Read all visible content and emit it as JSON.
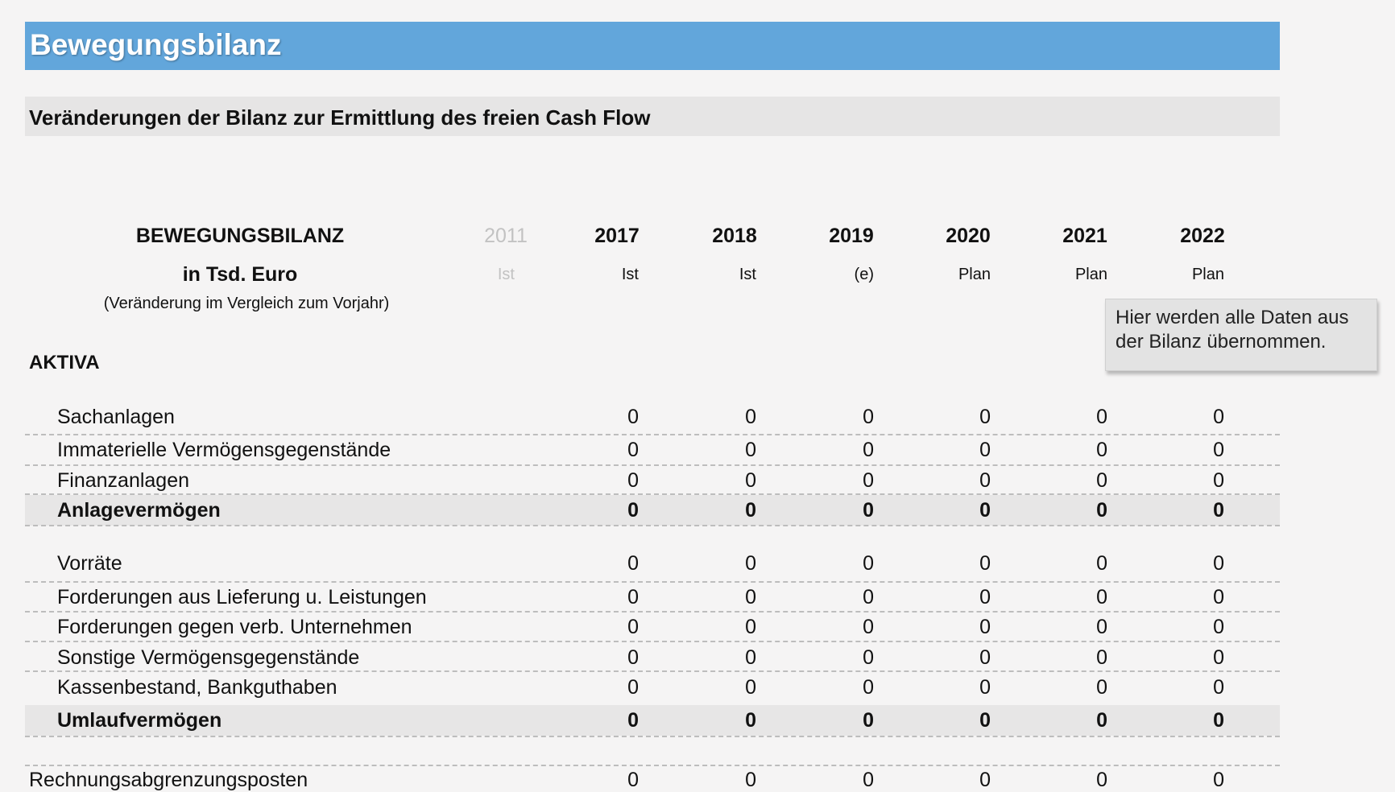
{
  "header": {
    "title": "Bewegungsbilanz",
    "subtitle": "Veränderungen der Bilanz zur Ermittlung des freien Cash Flow"
  },
  "table": {
    "heading": "BEWEGUNGSBILANZ",
    "unit": "in Tsd. Euro",
    "note": "(Veränderung im Vergleich zum Vorjahr)",
    "columns": [
      {
        "year": "2011",
        "kind": "Ist"
      },
      {
        "year": "2017",
        "kind": "Ist"
      },
      {
        "year": "2018",
        "kind": "Ist"
      },
      {
        "year": "2019",
        "kind": "(e)"
      },
      {
        "year": "2020",
        "kind": "Plan"
      },
      {
        "year": "2021",
        "kind": "Plan"
      },
      {
        "year": "2022",
        "kind": "Plan"
      }
    ],
    "section": "AKTIVA",
    "rows": [
      {
        "label": "Sachanlagen",
        "values": [
          0,
          0,
          0,
          0,
          0,
          0
        ]
      },
      {
        "label": "Immaterielle Vermögensgegenstände",
        "values": [
          0,
          0,
          0,
          0,
          0,
          0
        ]
      },
      {
        "label": "Finanzanlagen",
        "values": [
          0,
          0,
          0,
          0,
          0,
          0
        ]
      },
      {
        "label": "Anlagevermögen",
        "values": [
          0,
          0,
          0,
          0,
          0,
          0
        ],
        "bold": true
      },
      {
        "label": "Vorräte",
        "values": [
          0,
          0,
          0,
          0,
          0,
          0
        ]
      },
      {
        "label": "Forderungen aus Lieferung u. Leistungen",
        "values": [
          0,
          0,
          0,
          0,
          0,
          0
        ]
      },
      {
        "label": "Forderungen gegen verb. Unternehmen",
        "values": [
          0,
          0,
          0,
          0,
          0,
          0
        ]
      },
      {
        "label": "Sonstige Vermögensgegenstände",
        "values": [
          0,
          0,
          0,
          0,
          0,
          0
        ]
      },
      {
        "label": "Kassenbestand, Bankguthaben",
        "values": [
          0,
          0,
          0,
          0,
          0,
          0
        ]
      },
      {
        "label": "Umlaufvermögen",
        "values": [
          0,
          0,
          0,
          0,
          0,
          0
        ],
        "bold": true
      },
      {
        "label": "Rechnungsabgrenzungsposten",
        "values": [
          0,
          0,
          0,
          0,
          0,
          0
        ]
      }
    ]
  },
  "callout": "Hier werden alle Daten aus der Bilanz übernommen."
}
